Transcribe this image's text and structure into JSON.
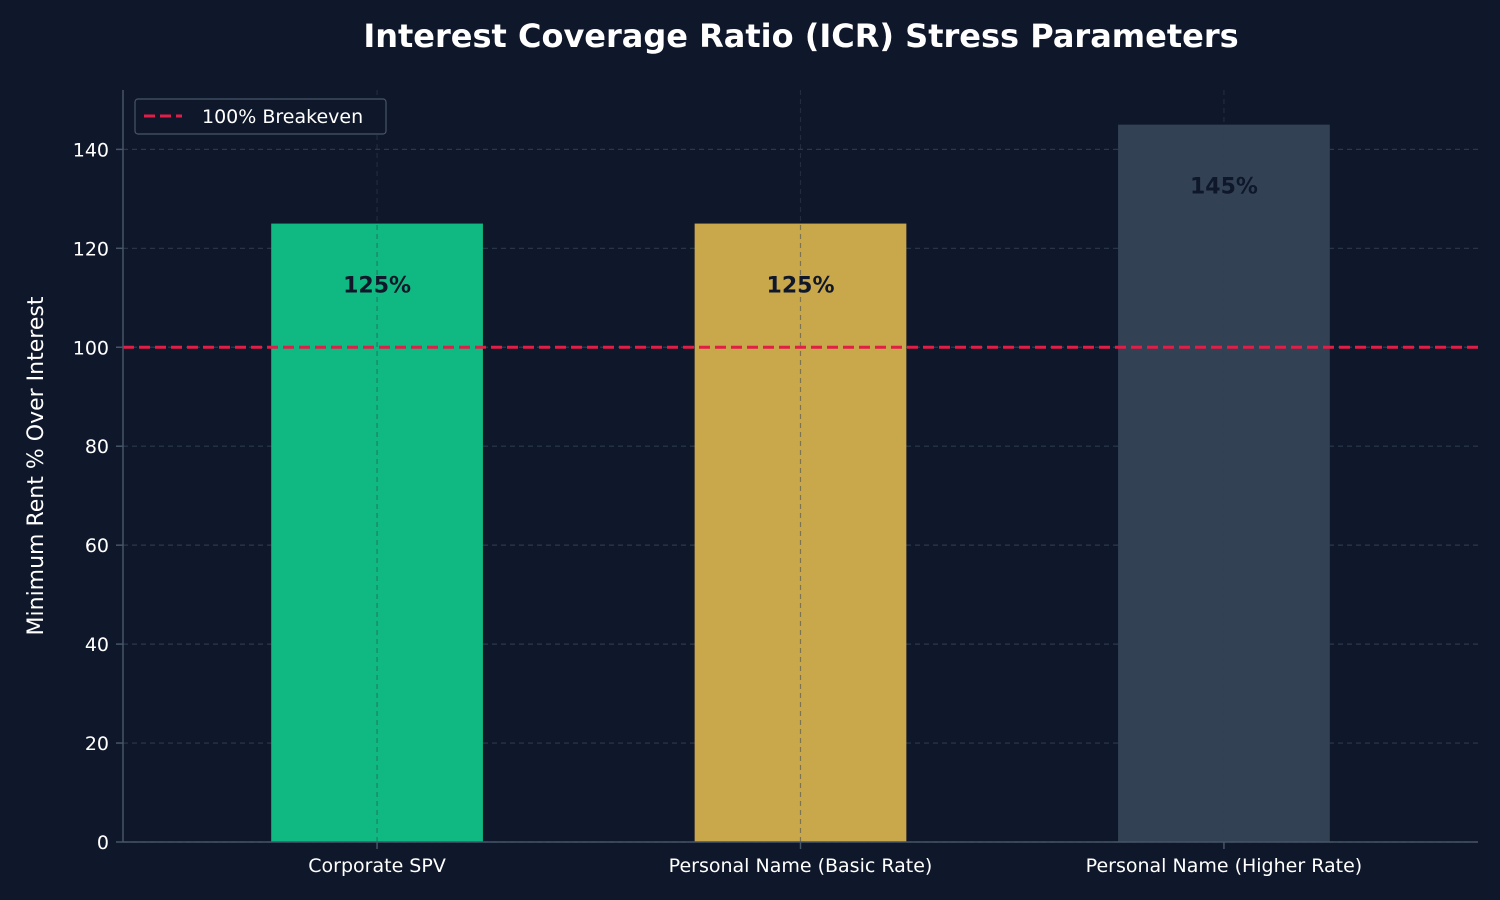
{
  "chart_data": {
    "type": "bar",
    "title": "Interest Coverage Ratio (ICR) Stress Parameters",
    "xlabel": "",
    "ylabel": "Minimum Rent % Over Interest",
    "categories": [
      "Corporate SPV",
      "Personal Name (Basic Rate)",
      "Personal Name (Higher Rate)"
    ],
    "values": [
      125,
      125,
      145
    ],
    "data_labels": [
      "125%",
      "125%",
      "145%"
    ],
    "bar_colors": [
      "#10b981",
      "#c9a74b",
      "#334155"
    ],
    "data_label_colors": [
      "#0f172a",
      "#0f172a",
      "#0f172a"
    ],
    "ylim": [
      0,
      152
    ],
    "yticks": [
      0,
      20,
      40,
      60,
      80,
      100,
      120,
      140
    ],
    "grid": true,
    "reference_line": {
      "y": 100,
      "label": "100% Breakeven",
      "color": "#e11d48",
      "style": "dashed"
    },
    "legend": {
      "placement": "top-left",
      "entries": [
        "100% Breakeven"
      ]
    },
    "colors": {
      "background": "#0f172a",
      "grid": "#334155",
      "axis": "#475569",
      "text": "#ffffff"
    }
  }
}
